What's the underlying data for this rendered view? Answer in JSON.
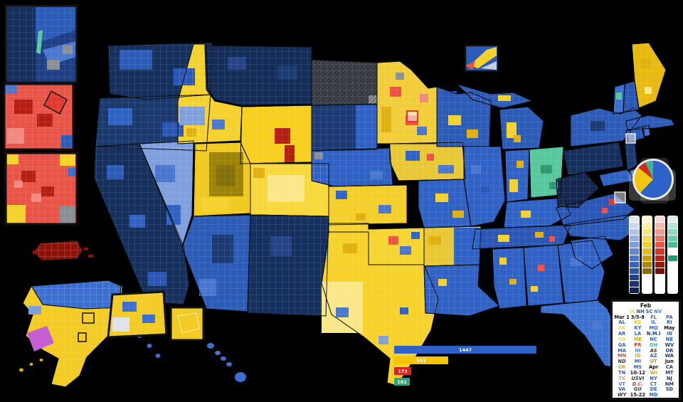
{
  "palette": {
    "background": "#000000",
    "trump_navy": "#16305e",
    "trump_navy2": "#1b3a74",
    "trump_blue_dark": "#254287",
    "trump_blue": "#2f62c4",
    "trump_blue_med": "#2c5cb8",
    "trump_blue2": "#2a57b5",
    "trump_blue_lt": "#4a76d0",
    "trump_blue_lighter": "#7f9fdd",
    "trump_blue_bright": "#3a6fd0",
    "cruz_yellow": "#f5d12c",
    "cruz_gold": "#e0b10e",
    "cruz_gold_dark": "#b8930c",
    "cruz_olive": "#9c8207",
    "cruz_olive_dark": "#84700a",
    "cruz_pale": "#fae788",
    "rubio_red": "#e03a2f",
    "rubio_red_med": "#ec5344",
    "rubio_pink": "#f08a80",
    "rubio_dark": "#b51e12",
    "rubio_darkest": "#8c1208",
    "kasich_green": "#57c79d",
    "kasich_green_dark": "#2e9770",
    "carson_magenta": "#c75fd4",
    "no_data_gray": "#8a8f96",
    "nd_dark": "#33373d",
    "inset_white": "#dfe4ea"
  },
  "map": {
    "regions": {
      "WA": "#16305e",
      "OR": "#1a3a6e",
      "CA": "#16305e",
      "NV": "#7f9fdd",
      "ID": "#f5d12c",
      "MT": "#142c58",
      "WY": "#f6cf1f",
      "UT": "#f0ca1e",
      "CO": "#f8d83a",
      "AZ": "#2c5cb8",
      "NM": "#15305f",
      "ND": "#33373d",
      "SD": "#1b3a74",
      "NE": "#2f62c4",
      "KS": "#f4cf2a",
      "OK": "#f6d431",
      "TX": "#f6d22b",
      "MN": "#f2cd3a",
      "IA": "#e9c836",
      "WI": "#2c5cb8",
      "MIU": "#2c5cb8",
      "MI": "#2c5cb8",
      "IL": "#2f62c4",
      "MO": "#2f62c4",
      "AR": "#e9c836",
      "LA": "#2f62c4",
      "IN": "#2f62c4",
      "OH": "#57c79d",
      "KY": "#2f62c4",
      "TN": "#2a57b5",
      "MS": "#2f62c4",
      "AL": "#2f62c4",
      "GA": "#2f62c4",
      "FL": "#3a6fd0",
      "SC": "#2f62c4",
      "NC": "#2c5cb8",
      "VA": "#2a57b5",
      "WV": "#12264f",
      "PA": "#15305f",
      "NY": "#2c5cb8",
      "NJ": "#1b3a74",
      "MD": "#2f62c4",
      "DE": "#3a6fd0",
      "CT": "#2a57b5",
      "RI": "#3a6fd0",
      "MA": "#2c5cb8",
      "VT": "#3a6fd0",
      "NH": "#2a57b5",
      "ME": "#e8b90f",
      "AK": "#f2cb25",
      "AKN": "#3a6fd0",
      "HI": "#3a6fd0",
      "PR": "#8c1208"
    }
  },
  "pie": {
    "slices": [
      {
        "name": "blue",
        "value": 62.0,
        "color": "#2e62c9"
      },
      {
        "name": "yellow",
        "value": 23.6,
        "color": "#f2c80f"
      },
      {
        "name": "red",
        "value": 7.4,
        "color": "#d7281e"
      },
      {
        "name": "teal",
        "value": 7.0,
        "color": "#45b08c"
      }
    ]
  },
  "legend": {
    "columns": [
      {
        "name": "blue-shades",
        "shades": [
          "#dfe7f5",
          "#c9d7f0",
          "#b0c4ea",
          "#96b1e4",
          "#7c9dde",
          "#6289d8",
          "#4a76d0",
          "#3a65bd",
          "#2f53a2",
          "#254287",
          "#1b316b",
          "#12224e"
        ]
      },
      {
        "name": "yellow-shades",
        "shades": [
          "#fdf7cb",
          "#fbefa6",
          "#f9e57e",
          "#f6da55",
          "#f3cf2b",
          "#e7bb10",
          "#c9a00c",
          "#ab8709",
          "#8c6e06",
          "",
          "",
          ""
        ]
      },
      {
        "name": "red-shades",
        "shades": [
          "#fbdad5",
          "#f8b9b1",
          "#f4978c",
          "#f07568",
          "#ec5344",
          "#e03425",
          "#bd2618",
          "#98180c",
          "#750e05",
          "",
          "",
          ""
        ]
      },
      {
        "name": "teal-shades",
        "shades": [
          "#d9f1e8",
          "#b5e5d4",
          "#90d8bf",
          "#6bccaa",
          "#46bf95",
          "",
          "#239b74",
          "",
          "",
          "",
          "",
          ""
        ]
      }
    ]
  },
  "delegate_bars": {
    "max": 1447,
    "bars": [
      {
        "label": "1447",
        "value": 1447,
        "color": "#2e62c9"
      },
      {
        "label": "551",
        "value": 551,
        "color": "#f5c400"
      },
      {
        "label": "173",
        "value": 173,
        "color": "#d7281e"
      },
      {
        "label": "161",
        "value": 161,
        "color": "#2fa877"
      }
    ]
  },
  "calendar": {
    "title": "Feb",
    "feb_states": [
      {
        "t": "IA",
        "c": "#ecd66a"
      },
      {
        "t": "NH",
        "c": "#2a57b5"
      },
      {
        "t": "SC",
        "c": "#2a57b5"
      },
      {
        "t": "NV",
        "c": "#4b7fe0"
      }
    ],
    "columns": [
      [
        {
          "t": "Mar 1",
          "b": 1
        },
        {
          "t": "AL",
          "c": "#2f62c4"
        },
        {
          "t": "AK",
          "c": "#ecd66a"
        },
        {
          "t": "AR",
          "c": "#2f62c4"
        },
        {
          "t": "CO",
          "c": "#ecd66a"
        },
        {
          "t": "GA",
          "c": "#2f62c4"
        },
        {
          "t": "MA",
          "c": "#2f62c4"
        },
        {
          "t": "MN",
          "c": "#e4483a"
        },
        {
          "t": "ND",
          "i": 1,
          "c": "#333333"
        },
        {
          "t": "OK",
          "c": "#d9a90e"
        },
        {
          "t": "TN",
          "c": "#2f62c4"
        },
        {
          "t": "TX",
          "c": "#d9a90e"
        },
        {
          "t": "VT",
          "c": "#4b7fe0"
        },
        {
          "t": "VA",
          "c": "#2f62c4"
        },
        {
          "t": "WY",
          "i": 1,
          "c": "#333333"
        }
      ],
      [
        {
          "t": "3/5-8",
          "b": 1
        },
        {
          "t": "KS",
          "c": "#e6c215"
        },
        {
          "t": "KY",
          "c": "#2f62c4"
        },
        {
          "t": "LA",
          "c": "#2f62c4"
        },
        {
          "t": "ME",
          "c": "#d9a90e"
        },
        {
          "t": "PR",
          "b": 1,
          "c": "#e03a2f"
        },
        {
          "t": "HI",
          "c": "#4b7fe0"
        },
        {
          "t": "ID",
          "c": "#d9a90e"
        },
        {
          "t": "MI",
          "c": "#2f62c4"
        },
        {
          "t": "MS",
          "c": "#2f62c4"
        },
        {
          "t": "10-12",
          "b": 1
        },
        {
          "t": "USVI",
          "i": 1,
          "c": "#333333"
        },
        {
          "t": "D.C.",
          "i": 1,
          "c": "#e03a2f"
        },
        {
          "t": "GU",
          "i": 1,
          "c": "#333333"
        },
        {
          "t": "15-22",
          "b": 1
        }
      ],
      [
        {
          "t": "FL",
          "c": "#2f62c4"
        },
        {
          "t": "IL",
          "c": "#2f62c4"
        },
        {
          "t": "MO",
          "c": "#2f62c4"
        },
        {
          "t": "N.M.I",
          "b": 1,
          "c": "#1b3a7a"
        },
        {
          "t": "NC",
          "c": "#2f62c4"
        },
        {
          "t": "OH",
          "c": "#3dbd8e"
        },
        {
          "t": "AS",
          "i": 1,
          "c": "#333333"
        },
        {
          "t": "AZ",
          "c": "#2f62c4"
        },
        {
          "t": "UT",
          "c": "#b8930c"
        },
        {
          "t": "Apr",
          "b": 1
        },
        {
          "t": "WI",
          "c": "#d9a90e"
        },
        {
          "t": "NY",
          "c": "#2f62c4"
        },
        {
          "t": "CT",
          "c": "#2f62c4"
        },
        {
          "t": "DE",
          "c": "#2f62c4"
        },
        {
          "t": "MD",
          "c": "#2f62c4"
        }
      ],
      [
        {
          "t": "PA",
          "c": "#2f62c4"
        },
        {
          "t": "RI",
          "c": "#2f62c4"
        },
        {
          "t": "May",
          "b": 1
        },
        {
          "t": "IN",
          "c": "#2f62c4"
        },
        {
          "t": "NE",
          "c": "#2a57b5"
        },
        {
          "t": "WV",
          "c": "#1b3a7a"
        },
        {
          "t": "OR",
          "c": "#1b3a7a"
        },
        {
          "t": "WA",
          "c": "#1b3a7a"
        },
        {
          "t": "Jun",
          "b": 1
        },
        {
          "t": "CA",
          "c": "#1b3a7a"
        },
        {
          "t": "MT",
          "c": "#1b3a7a"
        },
        {
          "t": "NJ",
          "c": "#1b3a7a"
        },
        {
          "t": "NM",
          "c": "#1b3a7a"
        },
        {
          "t": "SD",
          "c": "#1b3a7a"
        }
      ]
    ]
  }
}
